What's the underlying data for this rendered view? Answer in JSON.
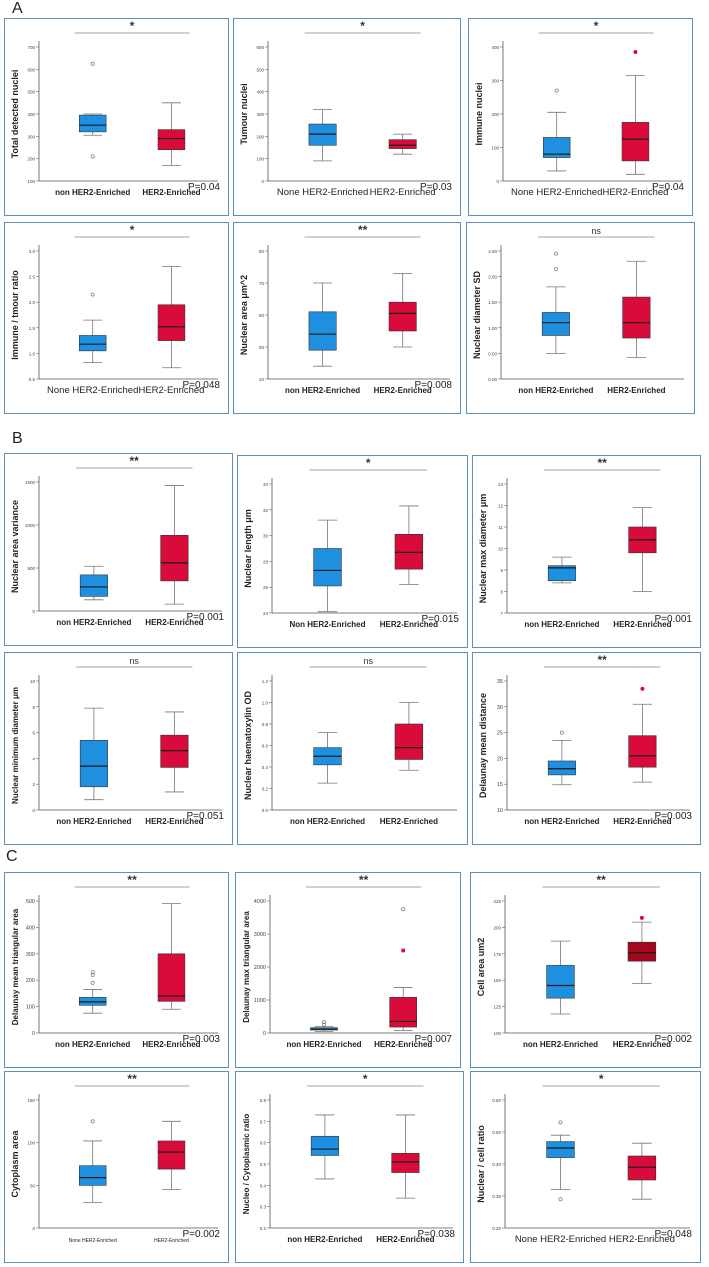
{
  "sections": [
    {
      "label": "A"
    },
    {
      "label": "B"
    },
    {
      "label": "C"
    }
  ],
  "colors": {
    "blue": "#1f90e0",
    "red": "#d90b3a",
    "darkred": "#a5071e",
    "panel_border": "#5d8fb8"
  },
  "chart_data": [
    {
      "id": "A1",
      "type": "boxplot",
      "ylabel": "Total detected nuclei",
      "categories": [
        "non HER2-Enriched",
        "HER2-Enriched"
      ],
      "yticks": [
        "100",
        "200",
        "300",
        "400",
        "500",
        "600",
        "700"
      ],
      "ylim": [
        100,
        700
      ],
      "boxes": [
        {
          "min": 305,
          "q1": 320,
          "median": 350,
          "q3": 395,
          "max": 400,
          "outliers": [
            {
              "v": 210,
              "filled": false
            },
            {
              "v": 625,
              "filled": false
            }
          ]
        },
        {
          "min": 170,
          "q1": 240,
          "median": 290,
          "q3": 330,
          "max": 450,
          "outliers": []
        }
      ],
      "sig": "*",
      "pvalue": "P=0.04",
      "bold_labels": true,
      "tick_small": true
    },
    {
      "id": "A2",
      "type": "boxplot",
      "ylabel": "Tumour nuclei",
      "categories": [
        "None HER2-Enriched",
        "HER2-Enriched"
      ],
      "yticks": [
        "0",
        "100",
        "200",
        "300",
        "400",
        "500",
        "600"
      ],
      "ylim": [
        0,
        600
      ],
      "boxes": [
        {
          "min": 90,
          "q1": 160,
          "median": 210,
          "q3": 255,
          "max": 320,
          "outliers": []
        },
        {
          "min": 120,
          "q1": 145,
          "median": 160,
          "q3": 185,
          "max": 210,
          "outliers": []
        }
      ],
      "sig": "*",
      "pvalue": "P=0.03",
      "bold_labels": false
    },
    {
      "id": "A3",
      "type": "boxplot",
      "ylabel": "Immune nuclei",
      "categories": [
        "None HER2-Enriched",
        "HER2-Enriched"
      ],
      "yticks": [
        "0",
        "100",
        "200",
        "300",
        "400"
      ],
      "ylim": [
        0,
        400
      ],
      "boxes": [
        {
          "min": 30,
          "q1": 70,
          "median": 80,
          "q3": 130,
          "max": 205,
          "outliers": [
            {
              "v": 270,
              "filled": false
            }
          ]
        },
        {
          "min": 20,
          "q1": 60,
          "median": 125,
          "q3": 175,
          "max": 315,
          "outliers": [
            {
              "v": 385,
              "filled": true
            }
          ]
        }
      ],
      "sig": "*",
      "pvalue": "P=0.04",
      "bold_labels": false
    },
    {
      "id": "A4",
      "type": "boxplot",
      "ylabel": "Immune / tmour ratio",
      "categories": [
        "None HER2-Enriched",
        "HER2-Enriched"
      ],
      "yticks": [
        "0.5",
        "1.0",
        "1.5",
        "2.0",
        "2.5",
        "3.0"
      ],
      "ylim": [
        0.5,
        3.0
      ],
      "boxes": [
        {
          "min": 0.82,
          "q1": 1.05,
          "median": 1.18,
          "q3": 1.35,
          "max": 1.65,
          "outliers": [
            {
              "v": 2.15,
              "filled": false
            }
          ]
        },
        {
          "min": 0.72,
          "q1": 1.25,
          "median": 1.52,
          "q3": 1.95,
          "max": 2.7,
          "outliers": []
        }
      ],
      "sig": "*",
      "pvalue": "P=0.048",
      "bold_labels": false
    },
    {
      "id": "A5",
      "type": "boxplot",
      "ylabel": "Nuclear area μm^2",
      "categories": [
        "non HER2-Enriched",
        "HER2-Enriched"
      ],
      "yticks": [
        "40",
        "50",
        "60",
        "70",
        "80"
      ],
      "ylim": [
        40,
        80
      ],
      "boxes": [
        {
          "min": 44,
          "q1": 49,
          "median": 54,
          "q3": 61,
          "max": 70,
          "outliers": []
        },
        {
          "min": 50,
          "q1": 55,
          "median": 60.5,
          "q3": 64,
          "max": 73,
          "outliers": []
        }
      ],
      "sig": "**",
      "pvalue": "P=0.008",
      "bold_labels": true,
      "tick_small": true
    },
    {
      "id": "A6",
      "type": "boxplot",
      "ylabel": "Nuclear diameter SD",
      "categories": [
        "non HER2-Enriched",
        "HER2-Enriched"
      ],
      "yticks": [
        "0.00",
        "0.50",
        "1.00",
        "1.50",
        "2.00",
        "2.50"
      ],
      "ylim": [
        0,
        2.5
      ],
      "boxes": [
        {
          "min": 0.5,
          "q1": 0.85,
          "median": 1.1,
          "q3": 1.3,
          "max": 1.8,
          "outliers": [
            {
              "v": 2.15,
              "filled": false
            },
            {
              "v": 2.45,
              "filled": false
            }
          ]
        },
        {
          "min": 0.42,
          "q1": 0.8,
          "median": 1.1,
          "q3": 1.6,
          "max": 2.3,
          "outliers": []
        }
      ],
      "sig": "ns",
      "pvalue": "",
      "bold_labels": true,
      "tick_small": true
    },
    {
      "id": "B1",
      "type": "boxplot",
      "ylabel": "Nuclear area variance",
      "categories": [
        "non HER2-Enriched",
        "HER2-Enriched"
      ],
      "yticks": [
        "0",
        "500",
        "1000",
        "1500"
      ],
      "ylim": [
        0,
        1500
      ],
      "boxes": [
        {
          "min": 130,
          "q1": 170,
          "median": 280,
          "q3": 420,
          "max": 520,
          "outliers": []
        },
        {
          "min": 80,
          "q1": 350,
          "median": 560,
          "q3": 880,
          "max": 1460,
          "outliers": []
        }
      ],
      "sig": "**",
      "pvalue": "P=0.001",
      "bold_labels": true,
      "tick_small": true
    },
    {
      "id": "B2",
      "type": "boxplot",
      "ylabel": "Nuclear length μm",
      "categories": [
        "Non HER2-Enriched",
        "HER2-Enriched"
      ],
      "yticks": [
        "24",
        "26",
        "28",
        "30",
        "32",
        "34"
      ],
      "ylim": [
        24,
        34
      ],
      "boxes": [
        {
          "min": 24.1,
          "q1": 26.1,
          "median": 27.3,
          "q3": 29,
          "max": 31.2,
          "outliers": []
        },
        {
          "min": 26.2,
          "q1": 27.4,
          "median": 28.7,
          "q3": 30.1,
          "max": 32.3,
          "outliers": []
        }
      ],
      "sig": "*",
      "pvalue": "P=0.015",
      "bold_labels": true,
      "tick_small": true
    },
    {
      "id": "B3",
      "type": "boxplot",
      "ylabel": "Nuclear max diameter μm",
      "categories": [
        "non HER2-Enriched",
        "HER2-Enriched"
      ],
      "yticks": [
        "7",
        "8",
        "9",
        "10",
        "11",
        "12",
        "13"
      ],
      "ylim": [
        7,
        13
      ],
      "boxes": [
        {
          "min": 8.4,
          "q1": 8.5,
          "median": 9.1,
          "q3": 9.2,
          "max": 9.6,
          "outliers": []
        },
        {
          "min": 8.0,
          "q1": 9.8,
          "median": 10.4,
          "q3": 11.0,
          "max": 11.9,
          "outliers": []
        }
      ],
      "sig": "**",
      "pvalue": "P=0.001",
      "bold_labels": true,
      "tick_small": true
    },
    {
      "id": "B4",
      "type": "boxplot",
      "ylabel": "Nuclear minimum diameter μm",
      "categories": [
        "non HER2-Enriched",
        "HER2-Enriched"
      ],
      "yticks": [
        "0",
        "2",
        "4",
        "6",
        "8",
        "10"
      ],
      "ylim": [
        0,
        10
      ],
      "boxes": [
        {
          "min": 0.8,
          "q1": 1.8,
          "median": 3.4,
          "q3": 5.4,
          "max": 7.9,
          "outliers": []
        },
        {
          "min": 1.4,
          "q1": 3.3,
          "median": 4.6,
          "q3": 5.8,
          "max": 7.6,
          "outliers": []
        }
      ],
      "sig": "ns",
      "pvalue": "P=0.051",
      "bold_labels": true,
      "tick_small": true
    },
    {
      "id": "B5",
      "type": "boxplot",
      "ylabel": "Nuclear haematoxylin OD",
      "categories": [
        "non HER2-Enriched",
        "HER2-Enriched"
      ],
      "yticks": [
        "0.0",
        "0.2",
        "0.4",
        "0.6",
        "0.8",
        "1.0",
        "1.2"
      ],
      "ylim": [
        0,
        1.2
      ],
      "boxes": [
        {
          "min": 0.25,
          "q1": 0.42,
          "median": 0.5,
          "q3": 0.58,
          "max": 0.72,
          "outliers": []
        },
        {
          "min": 0.37,
          "q1": 0.47,
          "median": 0.58,
          "q3": 0.8,
          "max": 1.0,
          "outliers": []
        }
      ],
      "sig": "ns",
      "pvalue": "",
      "bold_labels": true,
      "tick_small": true
    },
    {
      "id": "B6",
      "type": "boxplot",
      "ylabel": "Delaunay mean distance",
      "categories": [
        "non HER2-Enriched",
        "HER2-Enriched"
      ],
      "yticks": [
        "10",
        "15",
        "20",
        "25",
        "30",
        "35"
      ],
      "ylim": [
        10,
        35
      ],
      "boxes": [
        {
          "min": 14.9,
          "q1": 16.8,
          "median": 18,
          "q3": 19.5,
          "max": 23.5,
          "outliers": [
            {
              "v": 25,
              "filled": false
            }
          ]
        },
        {
          "min": 15.4,
          "q1": 18.3,
          "median": 20.5,
          "q3": 24.4,
          "max": 30.5,
          "outliers": [
            {
              "v": 33.5,
              "filled": true
            }
          ]
        }
      ],
      "sig": "**",
      "pvalue": "P=0.003",
      "bold_labels": true,
      "tick_large": true
    },
    {
      "id": "C1",
      "type": "boxplot",
      "ylabel": "Delaunay mean triangular area",
      "categories": [
        "non HER2-Enriched",
        "HER2-Enriched"
      ],
      "yticks": [
        "0",
        "100",
        "200",
        "300",
        "400",
        "500"
      ],
      "ylim": [
        0,
        500
      ],
      "boxes": [
        {
          "min": 75,
          "q1": 105,
          "median": 118,
          "q3": 135,
          "max": 165,
          "outliers": [
            {
              "v": 190,
              "filled": false
            },
            {
              "v": 220,
              "filled": false
            },
            {
              "v": 230,
              "filled": false
            }
          ]
        },
        {
          "min": 90,
          "q1": 120,
          "median": 140,
          "q3": 300,
          "max": 490,
          "outliers": []
        }
      ],
      "sig": "**",
      "pvalue": "P=0.003",
      "bold_labels": true,
      "tick_large": true
    },
    {
      "id": "C2",
      "type": "boxplot",
      "ylabel": "Delaunay max triangular area",
      "categories": [
        "non HER2-Enriched",
        "HER2-Enriched"
      ],
      "yticks": [
        "0",
        "1000",
        "2000",
        "3000",
        "4000"
      ],
      "ylim": [
        0,
        4000
      ],
      "boxes": [
        {
          "min": 50,
          "q1": 90,
          "median": 120,
          "q3": 160,
          "max": 200,
          "outliers": [
            {
              "v": 250,
              "filled": false
            },
            {
              "v": 330,
              "filled": false
            }
          ]
        },
        {
          "min": 80,
          "q1": 180,
          "median": 350,
          "q3": 1080,
          "max": 1380,
          "outliers": [
            {
              "v": 2500,
              "filled": true
            },
            {
              "v": 3750,
              "filled": false
            }
          ]
        }
      ],
      "sig": "**",
      "pvalue": "P=0.007",
      "bold_labels": true,
      "tick_large": true
    },
    {
      "id": "C3",
      "type": "boxplot",
      "ylabel": "Cell area um2",
      "categories": [
        "non HER2-Enriched",
        "HER2-Enriched"
      ],
      "yticks": [
        "100",
        "125",
        "150",
        "175",
        "200",
        "225"
      ],
      "ylim": [
        100,
        225
      ],
      "boxes": [
        {
          "min": 118,
          "q1": 133,
          "median": 145,
          "q3": 164,
          "max": 187,
          "outliers": []
        },
        {
          "min": 147,
          "q1": 168,
          "median": 176,
          "q3": 186,
          "max": 205,
          "outliers": [
            {
              "v": 209,
              "filled": true
            }
          ]
        }
      ],
      "sig": "**",
      "pvalue": "P=0.002",
      "bold_labels": true,
      "tick_small": true,
      "second_dark": true
    },
    {
      "id": "C4",
      "type": "boxplot",
      "ylabel": "Cytoplasm area",
      "categories": [
        "None HER2-Enriched",
        "HER2-Enriched"
      ],
      "yticks": [
        "0",
        "50",
        "100",
        "150"
      ],
      "ylim": [
        0,
        150
      ],
      "boxes": [
        {
          "min": 30,
          "q1": 50,
          "median": 59,
          "q3": 73,
          "max": 102,
          "outliers": [
            {
              "v": 125,
              "filled": false
            }
          ]
        },
        {
          "min": 45,
          "q1": 69,
          "median": 89,
          "q3": 102,
          "max": 125,
          "outliers": []
        }
      ],
      "sig": "**",
      "pvalue": "P=0.002",
      "bold_labels": false,
      "tick_small": true,
      "cat_small": true
    },
    {
      "id": "C5",
      "type": "boxplot",
      "ylabel": "Nucleo / Cytoplasmic ratio",
      "categories": [
        "non HER2-Enriched",
        "HER2-Enriched"
      ],
      "yticks": [
        "0.2",
        "0.3",
        "0.4",
        "0.5",
        "0.6",
        "0.7",
        "0.8"
      ],
      "ylim": [
        0.2,
        0.8
      ],
      "boxes": [
        {
          "min": 0.43,
          "q1": 0.54,
          "median": 0.57,
          "q3": 0.63,
          "max": 0.73,
          "outliers": []
        },
        {
          "min": 0.34,
          "q1": 0.46,
          "median": 0.51,
          "q3": 0.55,
          "max": 0.73,
          "outliers": []
        }
      ],
      "sig": "*",
      "pvalue": "P=0.038",
      "bold_labels": true,
      "tick_small": true
    },
    {
      "id": "C6",
      "type": "boxplot",
      "ylabel": "Nuclear / cell ratio",
      "categories": [
        "None HER2-Enriched",
        "HER2-Enriched"
      ],
      "yticks": [
        "0.20",
        "0.30",
        "0.40",
        "0.50",
        "0.60"
      ],
      "ylim": [
        0.2,
        0.6
      ],
      "boxes": [
        {
          "min": 0.32,
          "q1": 0.42,
          "median": 0.45,
          "q3": 0.47,
          "max": 0.49,
          "outliers": [
            {
              "v": 0.53,
              "filled": false
            },
            {
              "v": 0.29,
              "filled": false
            }
          ]
        },
        {
          "min": 0.29,
          "q1": 0.35,
          "median": 0.39,
          "q3": 0.425,
          "max": 0.465,
          "outliers": []
        }
      ],
      "sig": "*",
      "pvalue": "P=0.048",
      "bold_labels": false
    }
  ]
}
